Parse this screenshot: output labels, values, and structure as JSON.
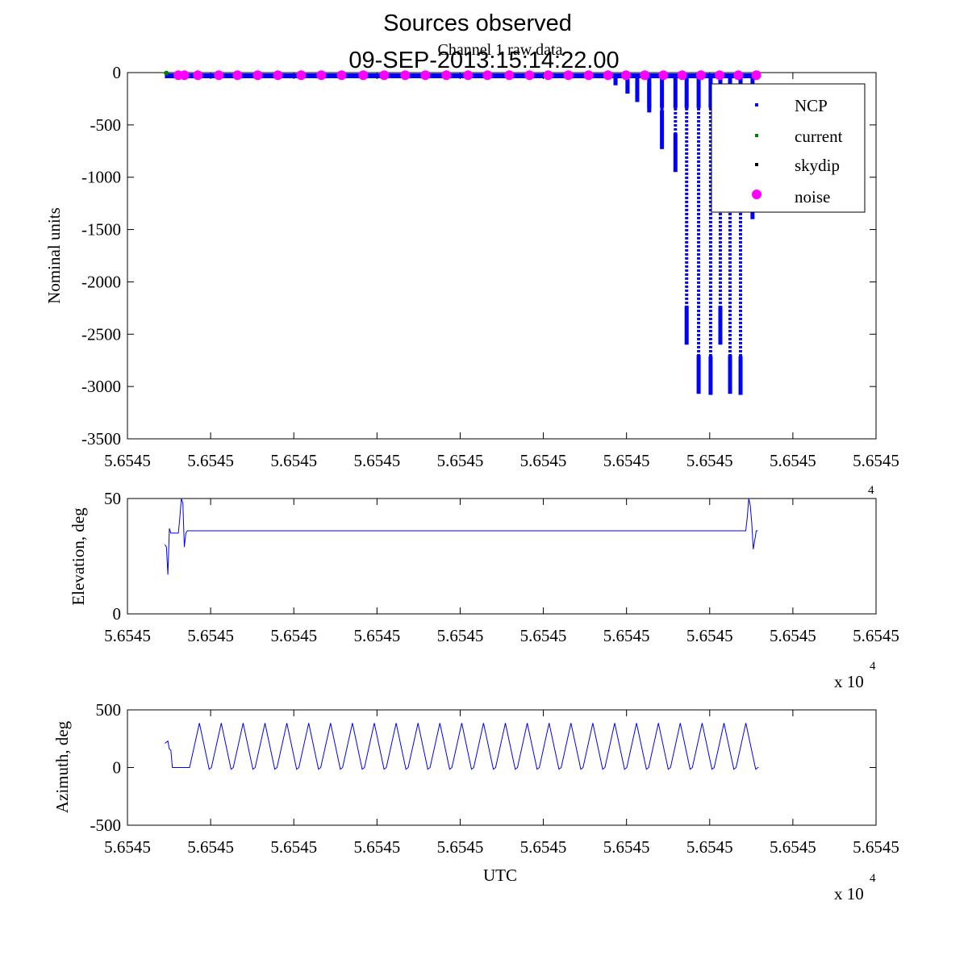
{
  "title": "Sources observed",
  "timestamp": "09-SEP-2013:15:14:22.00",
  "colors": {
    "ncp": "#0000ff",
    "current": "#008000",
    "skydip": "#000000",
    "noise": "#ff00ff",
    "line": "#0000ff"
  },
  "chart_data": [
    {
      "type": "scatter",
      "subtitle": "Channel 1 raw data",
      "ylabel": "Nominal units",
      "xlabel": "",
      "ylim": [
        -3500,
        0
      ],
      "yticks": [
        0,
        -500,
        -1000,
        -1500,
        -2000,
        -2500,
        -3000,
        -3500
      ],
      "xtick_labels": [
        "5.6545",
        "5.6545",
        "5.6545",
        "5.6545",
        "5.6545",
        "5.6545",
        "5.6545",
        "5.6545",
        "5.6545",
        "5.6545"
      ],
      "xlim_fraction": [
        0,
        1
      ],
      "legend": {
        "position": "top-right",
        "entries": [
          "NCP",
          "current",
          "skydip",
          "noise"
        ]
      },
      "series": [
        {
          "name": "NCP",
          "baseline": -30,
          "x_range_fraction": [
            0.05,
            0.84
          ],
          "dips": [
            {
              "x": 0.652,
              "min": -120
            },
            {
              "x": 0.668,
              "min": -200
            },
            {
              "x": 0.681,
              "min": -280
            },
            {
              "x": 0.697,
              "min": -380
            },
            {
              "x": 0.714,
              "min": -730
            },
            {
              "x": 0.732,
              "min": -950
            },
            {
              "x": 0.747,
              "min": -2600
            },
            {
              "x": 0.763,
              "min": -3070
            },
            {
              "x": 0.779,
              "min": -3080
            },
            {
              "x": 0.792,
              "min": -2600
            },
            {
              "x": 0.805,
              "min": -3070
            },
            {
              "x": 0.819,
              "min": -3080
            },
            {
              "x": 0.835,
              "min": -1400
            }
          ]
        },
        {
          "name": "current",
          "points": [
            {
              "x": 0.052,
              "y": -20
            }
          ]
        },
        {
          "name": "skydip",
          "points": [
            {
              "x": 0.842,
              "y": -20
            }
          ]
        },
        {
          "name": "noise",
          "y": -25,
          "x": [
            0.068,
            0.076,
            0.094,
            0.122,
            0.147,
            0.174,
            0.201,
            0.232,
            0.259,
            0.286,
            0.315,
            0.343,
            0.371,
            0.398,
            0.426,
            0.455,
            0.481,
            0.51,
            0.537,
            0.562,
            0.589,
            0.616,
            0.642,
            0.666,
            0.691,
            0.716,
            0.741,
            0.766,
            0.791,
            0.816,
            0.84
          ]
        }
      ]
    },
    {
      "type": "line",
      "ylabel": "Elevation, deg",
      "ylim": [
        0,
        50
      ],
      "yticks": [
        50,
        0
      ],
      "xtick_labels": [
        "5.6545",
        "5.6545",
        "5.6545",
        "5.6545",
        "5.6545",
        "5.6545",
        "5.6545",
        "5.6545",
        "5.6545",
        "5.6545"
      ],
      "x_exponent": "x 10",
      "x_exponent_power": "4",
      "series": [
        {
          "name": "Elevation",
          "x": [
            0.05,
            0.052,
            0.054,
            0.056,
            0.058,
            0.062,
            0.064,
            0.068,
            0.07,
            0.072,
            0.074,
            0.076,
            0.078,
            0.08,
            0.082,
            0.826,
            0.828,
            0.83,
            0.832,
            0.834,
            0.836,
            0.838,
            0.84,
            0.842
          ],
          "y": [
            30,
            29,
            17,
            37,
            35,
            35,
            35,
            35,
            42,
            50,
            48,
            29,
            35,
            36,
            36,
            36,
            42,
            50,
            47,
            39,
            28,
            32,
            36,
            36
          ]
        }
      ]
    },
    {
      "type": "line",
      "ylabel": "Azimuth, deg",
      "xlabel": "UTC",
      "ylim": [
        -500,
        500
      ],
      "yticks": [
        500,
        0,
        -500
      ],
      "xtick_labels": [
        "5.6545",
        "5.6545",
        "5.6545",
        "5.6545",
        "5.6545",
        "5.6545",
        "5.6545",
        "5.6545",
        "5.6545",
        "5.6545"
      ],
      "x_exponent": "x 10",
      "x_exponent_power": "4",
      "series": [
        {
          "name": "Azimuth",
          "start": [
            [
              0.05,
              210
            ],
            [
              0.054,
              230
            ],
            [
              0.056,
              160
            ],
            [
              0.058,
              150
            ],
            [
              0.06,
              0
            ],
            [
              0.083,
              0
            ]
          ],
          "period_fraction": 0.0262,
          "peak": 385,
          "trough": -15,
          "cycles": 26,
          "end_x": 0.842
        }
      ]
    }
  ]
}
